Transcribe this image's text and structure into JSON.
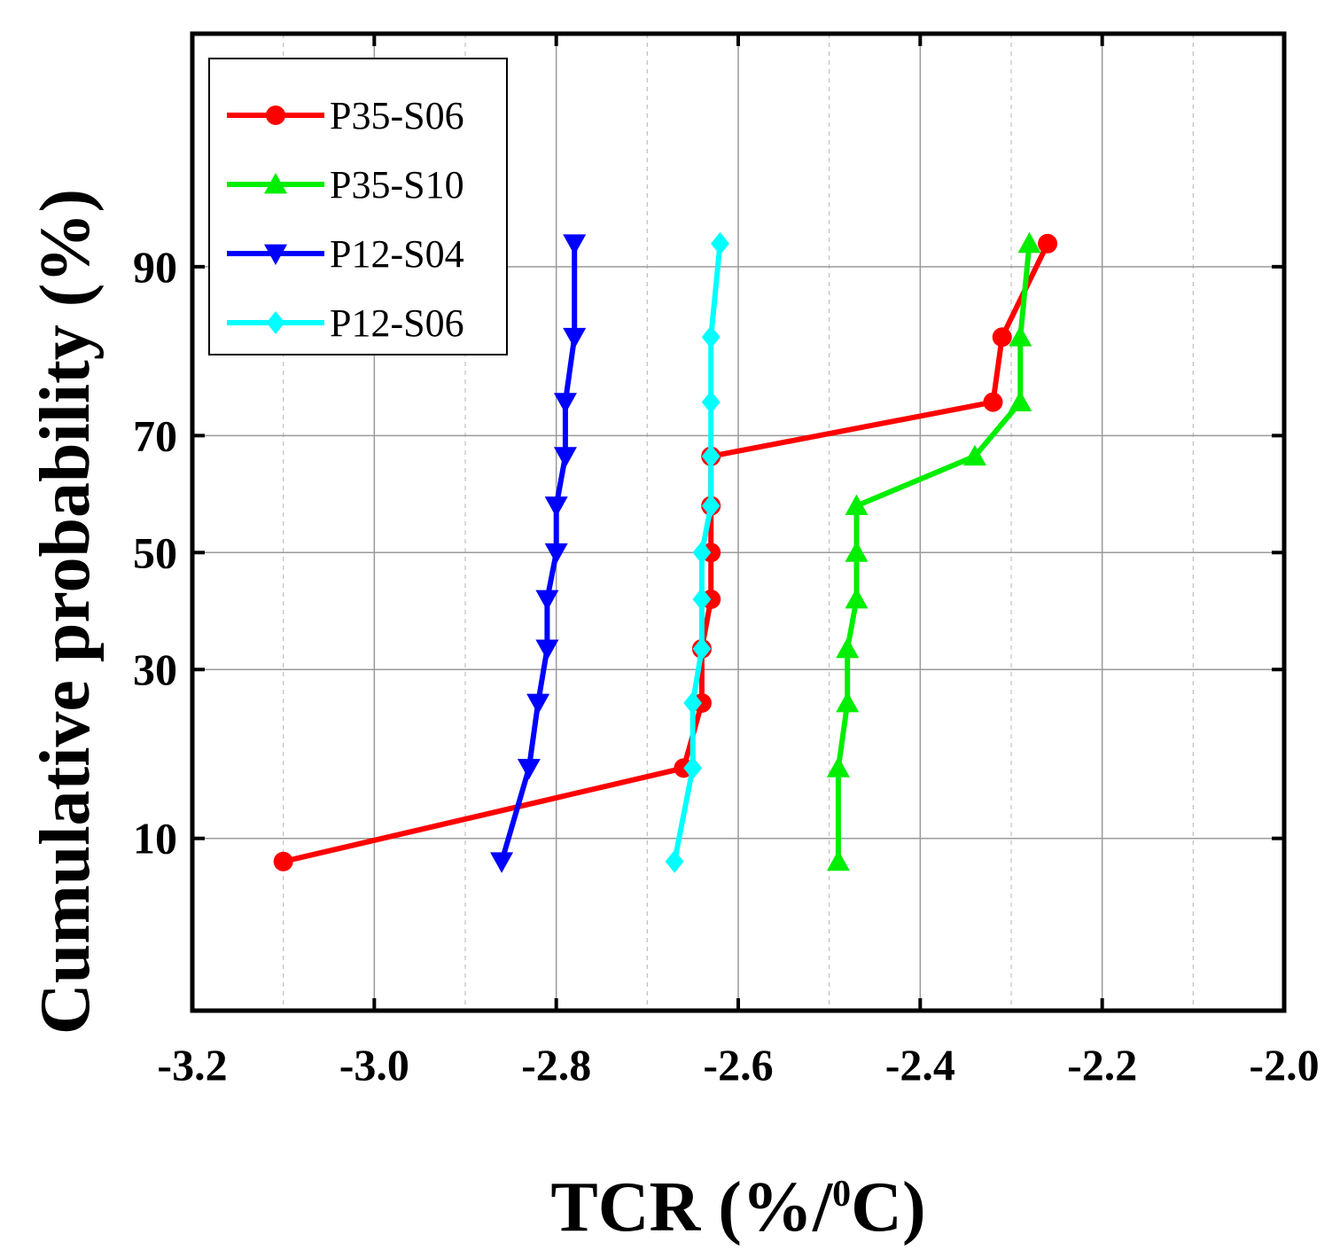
{
  "chart_data": {
    "type": "line",
    "title": "",
    "xlabel": "TCR (%/",
    "xlabel_sup": "0",
    "xlabel_end": "C)",
    "ylabel": "Cumulative probability (%)",
    "xlim": [
      -3.2,
      -2.0
    ],
    "ylim": [
      2,
      99
    ],
    "y_scale": "probability",
    "grid": true,
    "legend_position": "top-left",
    "x_ticks": [
      -3.2,
      -3.0,
      -2.8,
      -2.6,
      -2.4,
      -2.2,
      -2.0
    ],
    "x_tick_labels": [
      "-3.2",
      "-3.0",
      "-2.8",
      "-2.6",
      "-2.4",
      "-2.2",
      "-2.0"
    ],
    "y_ticks": [
      10,
      30,
      50,
      70,
      90
    ],
    "y_tick_labels": [
      "10",
      "30",
      "50",
      "70",
      "90"
    ],
    "series": [
      {
        "name": "P35-S06",
        "color": "#ff0000",
        "marker": "circle",
        "points": [
          [
            -3.1,
            8.3
          ],
          [
            -2.66,
            16.7
          ],
          [
            -2.64,
            25
          ],
          [
            -2.64,
            33.3
          ],
          [
            -2.63,
            41.7
          ],
          [
            -2.63,
            50
          ],
          [
            -2.63,
            58.3
          ],
          [
            -2.63,
            66.7
          ],
          [
            -2.32,
            75
          ],
          [
            -2.31,
            83.3
          ],
          [
            -2.26,
            91.7
          ]
        ]
      },
      {
        "name": "P35-S10",
        "color": "#00ee00",
        "marker": "triangle-up",
        "points": [
          [
            -2.49,
            8.3
          ],
          [
            -2.49,
            16.7
          ],
          [
            -2.48,
            25
          ],
          [
            -2.48,
            33.3
          ],
          [
            -2.47,
            41.7
          ],
          [
            -2.47,
            50
          ],
          [
            -2.47,
            58.3
          ],
          [
            -2.34,
            66.7
          ],
          [
            -2.29,
            75
          ],
          [
            -2.29,
            83.3
          ],
          [
            -2.28,
            91.7
          ]
        ]
      },
      {
        "name": "P12-S04",
        "color": "#0000ff",
        "marker": "triangle-down",
        "points": [
          [
            -2.86,
            8.3
          ],
          [
            -2.83,
            16.7
          ],
          [
            -2.82,
            25
          ],
          [
            -2.81,
            33.3
          ],
          [
            -2.81,
            41.7
          ],
          [
            -2.8,
            50
          ],
          [
            -2.8,
            58.3
          ],
          [
            -2.79,
            66.7
          ],
          [
            -2.79,
            75
          ],
          [
            -2.78,
            83.3
          ],
          [
            -2.78,
            91.7
          ]
        ]
      },
      {
        "name": "P12-S06",
        "color": "#00ffff",
        "marker": "diamond",
        "points": [
          [
            -2.67,
            8.3
          ],
          [
            -2.65,
            16.7
          ],
          [
            -2.65,
            25
          ],
          [
            -2.64,
            33.3
          ],
          [
            -2.64,
            41.7
          ],
          [
            -2.64,
            50
          ],
          [
            -2.63,
            58.3
          ],
          [
            -2.63,
            66.7
          ],
          [
            -2.63,
            75
          ],
          [
            -2.63,
            83.3
          ],
          [
            -2.62,
            91.7
          ]
        ]
      }
    ]
  }
}
